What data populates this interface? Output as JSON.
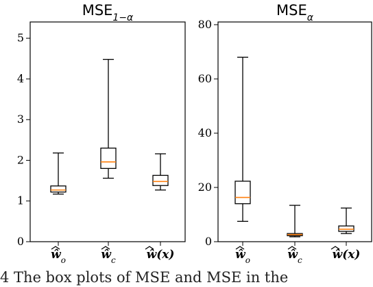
{
  "chart_data": [
    {
      "type": "box",
      "title": "MSE",
      "title_subscript": "1−α",
      "ylim": [
        0,
        5.4
      ],
      "yticks": [
        0,
        1,
        2,
        3,
        4,
        5
      ],
      "categories": [
        "ŵ",
        "ŵ",
        "ŵ(x)"
      ],
      "category_subscripts": [
        "o",
        "c",
        ""
      ],
      "boxes": [
        {
          "whisker_low": 1.17,
          "q1": 1.22,
          "median": 1.27,
          "q3": 1.37,
          "whisker_high": 2.18
        },
        {
          "whisker_low": 1.56,
          "q1": 1.8,
          "median": 1.96,
          "q3": 2.3,
          "whisker_high": 4.48
        },
        {
          "whisker_low": 1.27,
          "q1": 1.38,
          "median": 1.48,
          "q3": 1.63,
          "whisker_high": 2.16
        }
      ],
      "colors": {
        "box": "#000000",
        "median": "#ff7f0e"
      }
    },
    {
      "type": "box",
      "title": "MSE",
      "title_subscript": "α",
      "ylim": [
        0,
        81
      ],
      "yticks": [
        0,
        20,
        40,
        60,
        80
      ],
      "categories": [
        "ŵ",
        "ŵ",
        "ŵ(x)"
      ],
      "category_subscripts": [
        "o",
        "c",
        ""
      ],
      "boxes": [
        {
          "whisker_low": 7.5,
          "q1": 14.0,
          "median": 16.3,
          "q3": 22.3,
          "whisker_high": 68.0
        },
        {
          "whisker_low": 1.8,
          "q1": 2.2,
          "median": 2.6,
          "q3": 3.0,
          "whisker_high": 13.4
        },
        {
          "whisker_low": 3.0,
          "q1": 3.8,
          "median": 4.6,
          "q3": 5.8,
          "whisker_high": 12.4
        }
      ],
      "colors": {
        "box": "#000000",
        "median": "#ff7f0e"
      }
    }
  ],
  "caption": "4  The box plots of MSE      and MSE  in the"
}
